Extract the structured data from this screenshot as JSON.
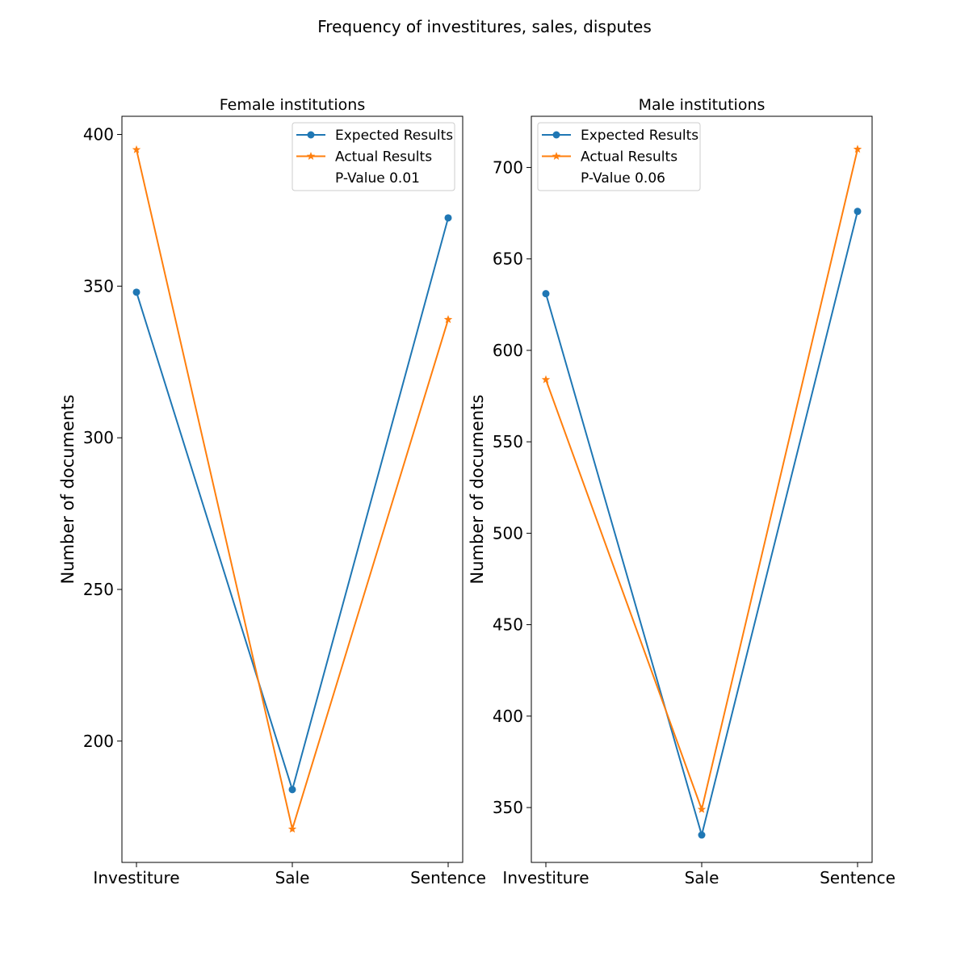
{
  "figure_title": "Frequency of investitures, sales, disputes",
  "chart_data": [
    {
      "type": "line",
      "title": "Female institutions",
      "xlabel": "",
      "ylabel": "Number of documents",
      "categories": [
        "Investiture",
        "Sale",
        "Sentence"
      ],
      "ylim": [
        160,
        406
      ],
      "yticks": [
        200,
        250,
        300,
        350,
        400
      ],
      "legend_position": "upper-right",
      "series": [
        {
          "name": "Expected Results",
          "values": [
            348,
            184,
            372.5
          ],
          "color": "#1f77b4",
          "marker": "circle"
        },
        {
          "name": "Actual Results",
          "values": [
            395,
            171,
            339
          ],
          "color": "#ff7f0e",
          "marker": "star"
        }
      ],
      "legend_note": "P-Value 0.01"
    },
    {
      "type": "line",
      "title": "Male institutions",
      "xlabel": "",
      "ylabel": "Number of documents",
      "categories": [
        "Investiture",
        "Sale",
        "Sentence"
      ],
      "ylim": [
        320,
        728
      ],
      "yticks": [
        350,
        400,
        450,
        500,
        550,
        600,
        650,
        700
      ],
      "legend_position": "upper-left",
      "series": [
        {
          "name": "Expected Results",
          "values": [
            631,
            335,
            676
          ],
          "color": "#1f77b4",
          "marker": "circle"
        },
        {
          "name": "Actual Results",
          "values": [
            584,
            349,
            710
          ],
          "color": "#ff7f0e",
          "marker": "star"
        }
      ],
      "legend_note": "P-Value 0.06"
    }
  ]
}
